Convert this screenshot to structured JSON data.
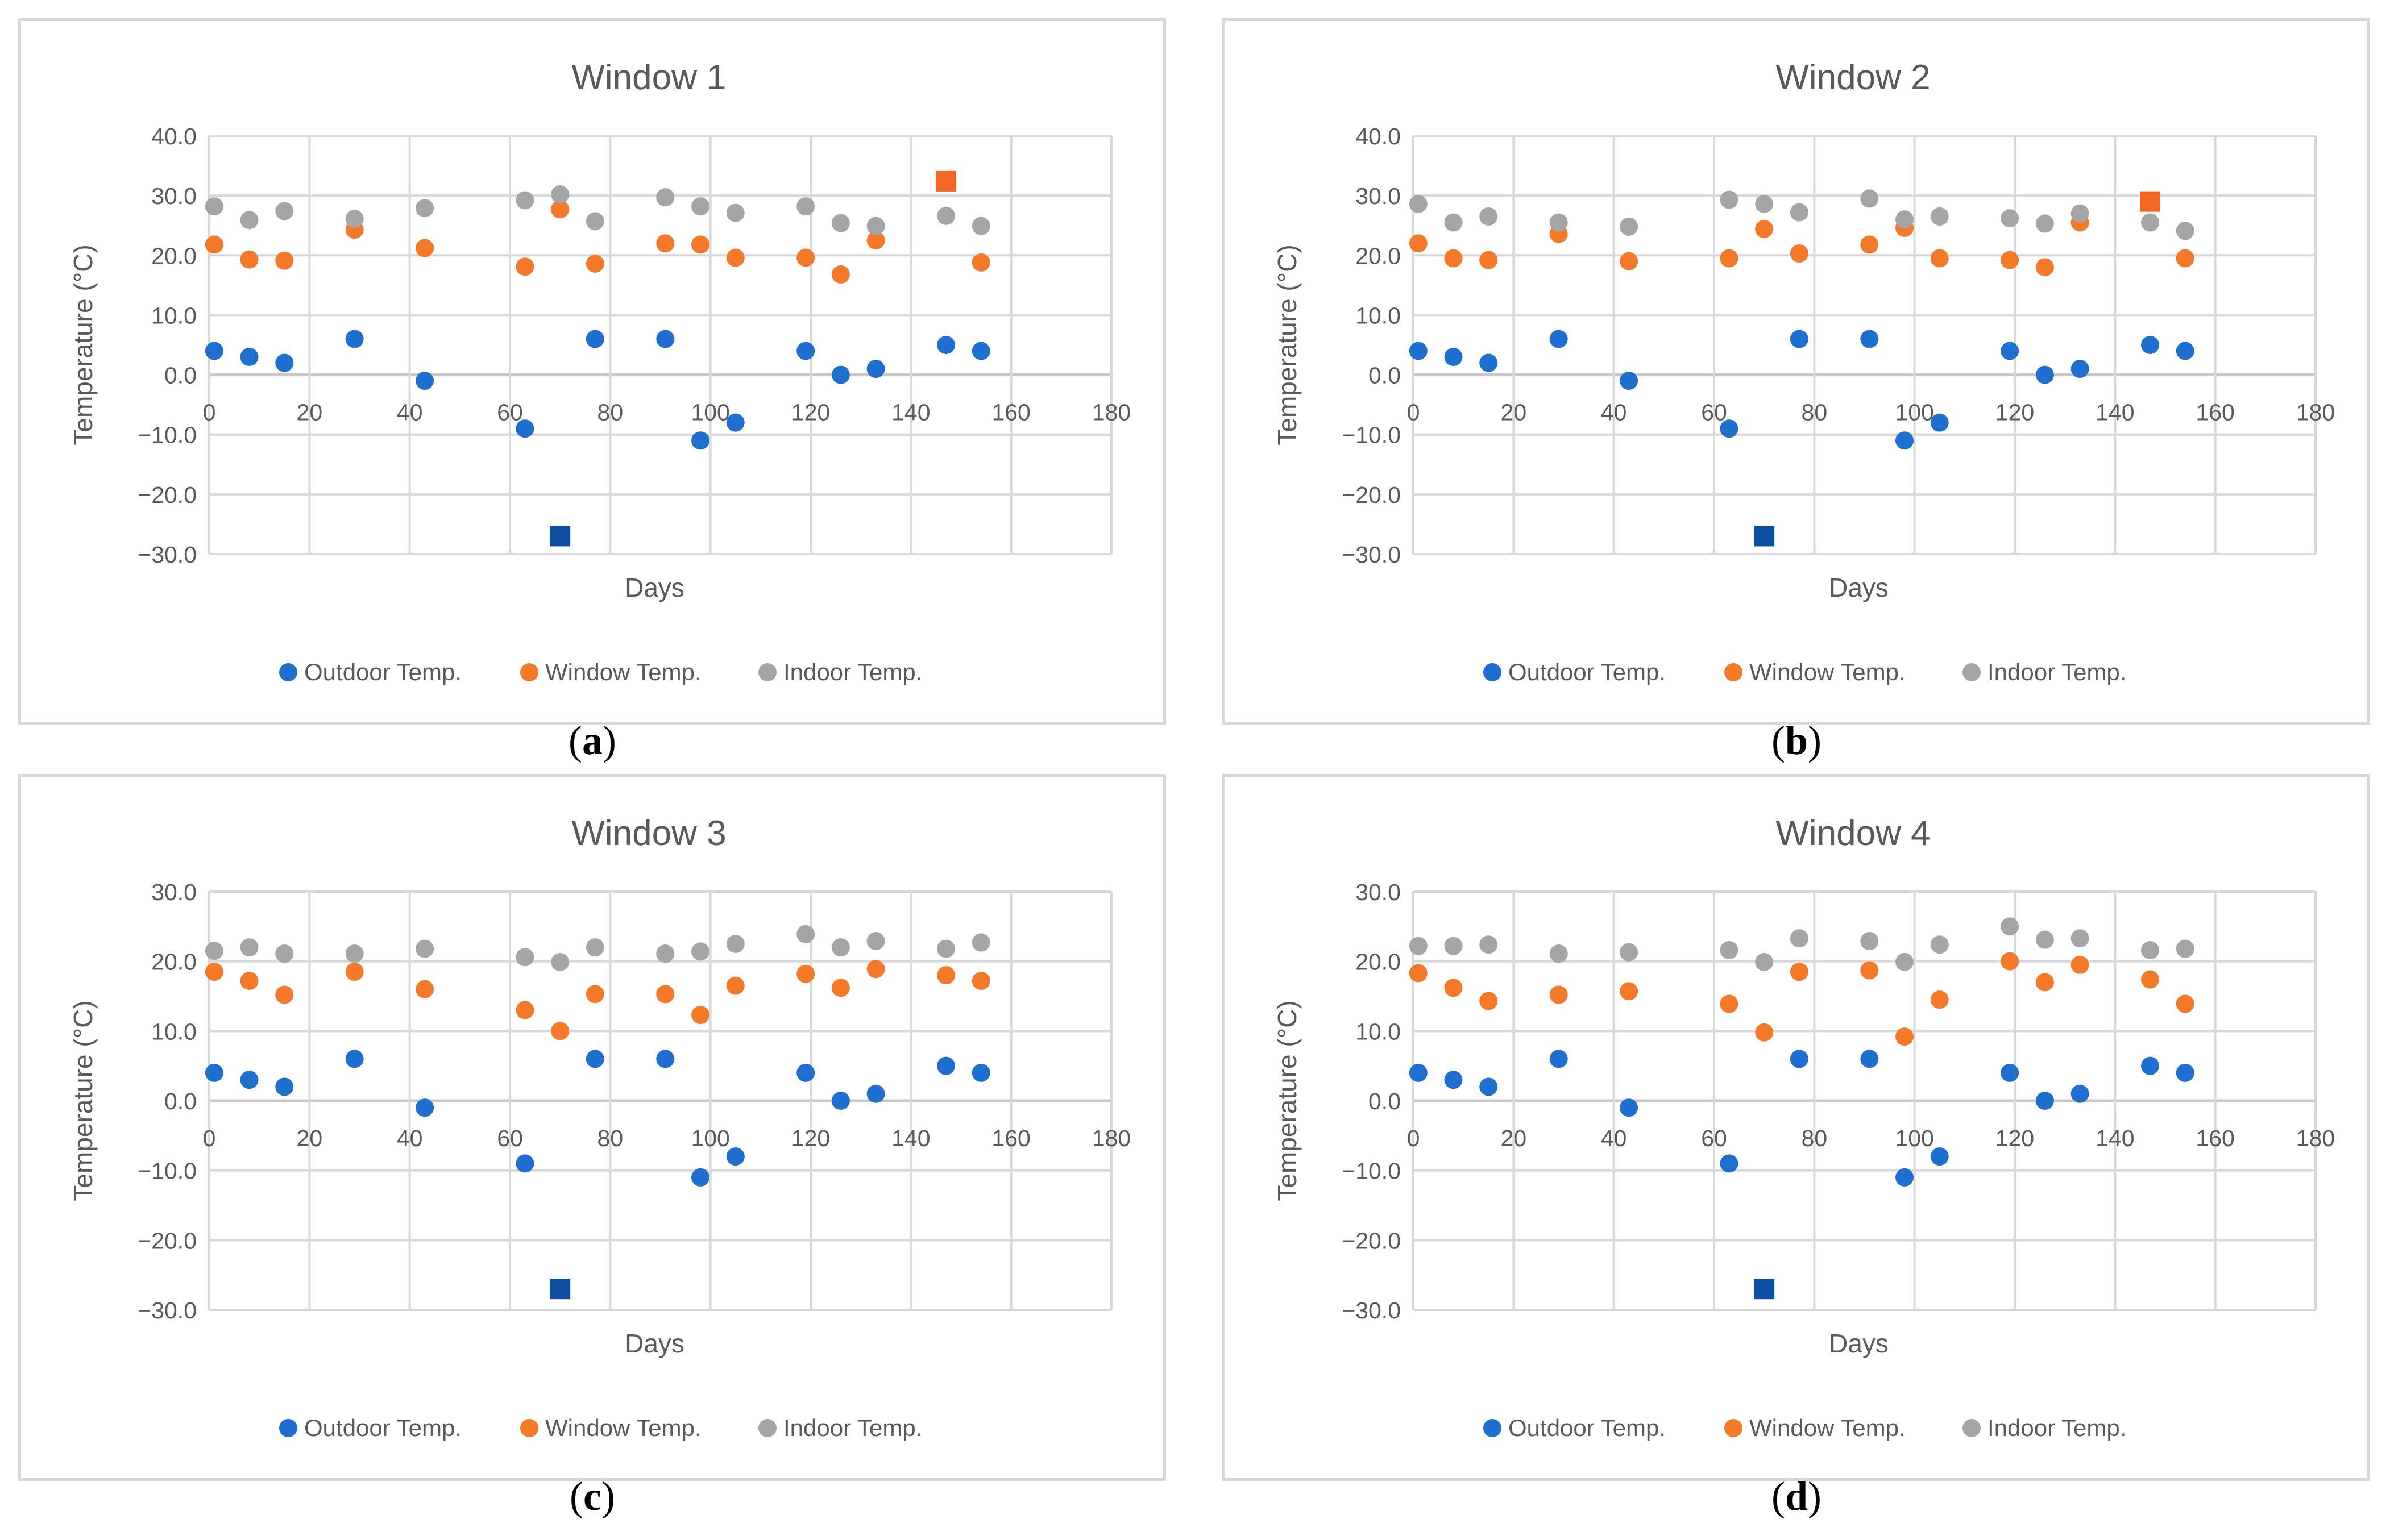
{
  "chart_data": [
    {
      "type": "scatter",
      "title": "Window 1",
      "xlabel": "Days",
      "ylabel": "Temperature (°C)",
      "xlim": [
        0,
        180
      ],
      "ylim": [
        -30,
        40
      ],
      "xticks": [
        0,
        20,
        40,
        60,
        80,
        100,
        120,
        140,
        160,
        180
      ],
      "yticks": [
        -30,
        -20,
        -10,
        0,
        10,
        20,
        30,
        40
      ],
      "ytick_labels": [
        "−30.0",
        "−20.0",
        "−10.0",
        "0.0",
        "10.0",
        "20.0",
        "30.0",
        "40.0"
      ],
      "series": [
        {
          "name": "Outdoor Temp.",
          "color": "#1f6fd1",
          "x": [
            1,
            8,
            15,
            29,
            43,
            63,
            70,
            77,
            91,
            98,
            105,
            119,
            126,
            133,
            147,
            154
          ],
          "y": [
            4,
            3,
            2,
            6,
            -1,
            -9,
            -27,
            6,
            6,
            -11,
            -8,
            4,
            0,
            1,
            5,
            4
          ]
        },
        {
          "name": "Window Temp.",
          "color": "#f47a2a",
          "x": [
            1,
            8,
            15,
            29,
            43,
            63,
            70,
            77,
            91,
            98,
            105,
            119,
            126,
            133,
            147,
            154
          ],
          "y": [
            21.8,
            19.3,
            19.1,
            24.3,
            21.2,
            18.1,
            27.7,
            18.6,
            22,
            21.8,
            19.6,
            19.6,
            16.8,
            22.5,
            32.4,
            18.8
          ]
        },
        {
          "name": "Indoor Temp.",
          "color": "#a5a5a5",
          "x": [
            1,
            8,
            15,
            29,
            43,
            63,
            70,
            77,
            91,
            98,
            105,
            119,
            126,
            133,
            147,
            154
          ],
          "y": [
            28.2,
            25.9,
            27.4,
            26.1,
            27.9,
            29.2,
            30.2,
            25.7,
            29.7,
            28.2,
            27.1,
            28.2,
            25.4,
            24.9,
            26.6,
            24.9
          ]
        }
      ],
      "highlighted": [
        {
          "series": "Outdoor Temp.",
          "x": 70,
          "y": -27,
          "marker": "square",
          "color": "#0b4ea2"
        },
        {
          "series": "Window Temp.",
          "x": 147,
          "y": 32.4,
          "marker": "square",
          "color": "#f26722"
        }
      ],
      "caption": "a"
    },
    {
      "type": "scatter",
      "title": "Window 2",
      "xlabel": "Days",
      "ylabel": "Temperature (°C)",
      "xlim": [
        0,
        180
      ],
      "ylim": [
        -30,
        40
      ],
      "xticks": [
        0,
        20,
        40,
        60,
        80,
        100,
        120,
        140,
        160,
        180
      ],
      "yticks": [
        -30,
        -20,
        -10,
        0,
        10,
        20,
        30,
        40
      ],
      "ytick_labels": [
        "−30.0",
        "−20.0",
        "−10.0",
        "0.0",
        "10.0",
        "20.0",
        "30.0",
        "40.0"
      ],
      "series": [
        {
          "name": "Outdoor Temp.",
          "color": "#1f6fd1",
          "x": [
            1,
            8,
            15,
            29,
            43,
            63,
            70,
            77,
            91,
            98,
            105,
            119,
            126,
            133,
            147,
            154
          ],
          "y": [
            4,
            3,
            2,
            6,
            -1,
            -9,
            -27,
            6,
            6,
            -11,
            -8,
            4,
            0,
            1,
            5,
            4
          ]
        },
        {
          "name": "Window Temp.",
          "color": "#f47a2a",
          "x": [
            1,
            8,
            15,
            29,
            43,
            63,
            70,
            77,
            91,
            98,
            105,
            119,
            126,
            133,
            147,
            154
          ],
          "y": [
            22,
            19.5,
            19.2,
            23.6,
            19,
            19.5,
            24.4,
            20.3,
            21.8,
            24.6,
            19.5,
            19.2,
            18,
            25.5,
            29,
            19.5
          ]
        },
        {
          "name": "Indoor Temp.",
          "color": "#a5a5a5",
          "x": [
            1,
            8,
            15,
            29,
            43,
            63,
            70,
            77,
            91,
            98,
            105,
            119,
            126,
            133,
            147,
            154
          ],
          "y": [
            28.6,
            25.5,
            26.5,
            25.5,
            24.8,
            29.3,
            28.6,
            27.2,
            29.5,
            26,
            26.5,
            26.2,
            25.3,
            27,
            25.5,
            24.1
          ]
        }
      ],
      "highlighted": [
        {
          "series": "Outdoor Temp.",
          "x": 70,
          "y": -27,
          "marker": "square",
          "color": "#0b4ea2"
        },
        {
          "series": "Window Temp.",
          "x": 147,
          "y": 29,
          "marker": "square",
          "color": "#f26722"
        }
      ],
      "caption": "b"
    },
    {
      "type": "scatter",
      "title": "Window 3",
      "xlabel": "Days",
      "ylabel": "Temperature (°C)",
      "xlim": [
        0,
        180
      ],
      "ylim": [
        -30,
        30
      ],
      "xticks": [
        0,
        20,
        40,
        60,
        80,
        100,
        120,
        140,
        160,
        180
      ],
      "yticks": [
        -30,
        -20,
        -10,
        0,
        10,
        20,
        30
      ],
      "ytick_labels": [
        "−30.0",
        "−20.0",
        "−10.0",
        "0.0",
        "10.0",
        "20.0",
        "30.0"
      ],
      "series": [
        {
          "name": "Outdoor Temp.",
          "color": "#1f6fd1",
          "x": [
            1,
            8,
            15,
            29,
            43,
            63,
            70,
            77,
            91,
            98,
            105,
            119,
            126,
            133,
            147,
            154
          ],
          "y": [
            4,
            3,
            2,
            6,
            -1,
            -9,
            -27,
            6,
            6,
            -11,
            -8,
            4,
            0,
            1,
            5,
            4
          ]
        },
        {
          "name": "Window Temp.",
          "color": "#f47a2a",
          "x": [
            1,
            8,
            15,
            29,
            43,
            63,
            70,
            77,
            91,
            98,
            105,
            119,
            126,
            133,
            147,
            154
          ],
          "y": [
            18.5,
            17.2,
            15.2,
            18.5,
            16,
            13,
            10,
            15.3,
            15.3,
            12.3,
            16.5,
            18.2,
            16.2,
            18.9,
            18,
            17.2
          ]
        },
        {
          "name": "Indoor Temp.",
          "color": "#a5a5a5",
          "x": [
            1,
            8,
            15,
            29,
            43,
            63,
            70,
            77,
            91,
            98,
            105,
            119,
            126,
            133,
            147,
            154
          ],
          "y": [
            21.5,
            22,
            21.1,
            21.1,
            21.8,
            20.6,
            19.9,
            22,
            21.1,
            21.4,
            22.5,
            23.9,
            22,
            22.9,
            21.8,
            22.7
          ]
        }
      ],
      "highlighted": [
        {
          "series": "Outdoor Temp.",
          "x": 70,
          "y": -27,
          "marker": "square",
          "color": "#0b4ea2"
        }
      ],
      "caption": "c"
    },
    {
      "type": "scatter",
      "title": "Window 4",
      "xlabel": "Days",
      "ylabel": "Temperature (°C)",
      "xlim": [
        0,
        180
      ],
      "ylim": [
        -30,
        30
      ],
      "xticks": [
        0,
        20,
        40,
        60,
        80,
        100,
        120,
        140,
        160,
        180
      ],
      "yticks": [
        -30,
        -20,
        -10,
        0,
        10,
        20,
        30
      ],
      "ytick_labels": [
        "−30.0",
        "−20.0",
        "−10.0",
        "0.0",
        "10.0",
        "20.0",
        "30.0"
      ],
      "series": [
        {
          "name": "Outdoor Temp.",
          "color": "#1f6fd1",
          "x": [
            1,
            8,
            15,
            29,
            43,
            63,
            70,
            77,
            91,
            98,
            105,
            119,
            126,
            133,
            147,
            154
          ],
          "y": [
            4,
            3,
            2,
            6,
            -1,
            -9,
            -27,
            6,
            6,
            -11,
            -8,
            4,
            0,
            1,
            5,
            4
          ]
        },
        {
          "name": "Window Temp.",
          "color": "#f47a2a",
          "x": [
            1,
            8,
            15,
            29,
            43,
            63,
            70,
            77,
            91,
            98,
            105,
            119,
            126,
            133,
            147,
            154
          ],
          "y": [
            18.3,
            16.2,
            14.3,
            15.2,
            15.7,
            13.9,
            9.8,
            18.5,
            18.7,
            9.2,
            14.5,
            20,
            17,
            19.5,
            17.4,
            13.9
          ]
        },
        {
          "name": "Indoor Temp.",
          "color": "#a5a5a5",
          "x": [
            1,
            8,
            15,
            29,
            43,
            63,
            70,
            77,
            91,
            98,
            105,
            119,
            126,
            133,
            147,
            154
          ],
          "y": [
            22.2,
            22.2,
            22.4,
            21.1,
            21.3,
            21.6,
            19.9,
            23.3,
            22.9,
            19.9,
            22.4,
            25,
            23.1,
            23.3,
            21.6,
            21.8
          ]
        }
      ],
      "highlighted": [
        {
          "series": "Outdoor Temp.",
          "x": 70,
          "y": -27,
          "marker": "square",
          "color": "#0b4ea2"
        }
      ],
      "caption": "d"
    }
  ]
}
